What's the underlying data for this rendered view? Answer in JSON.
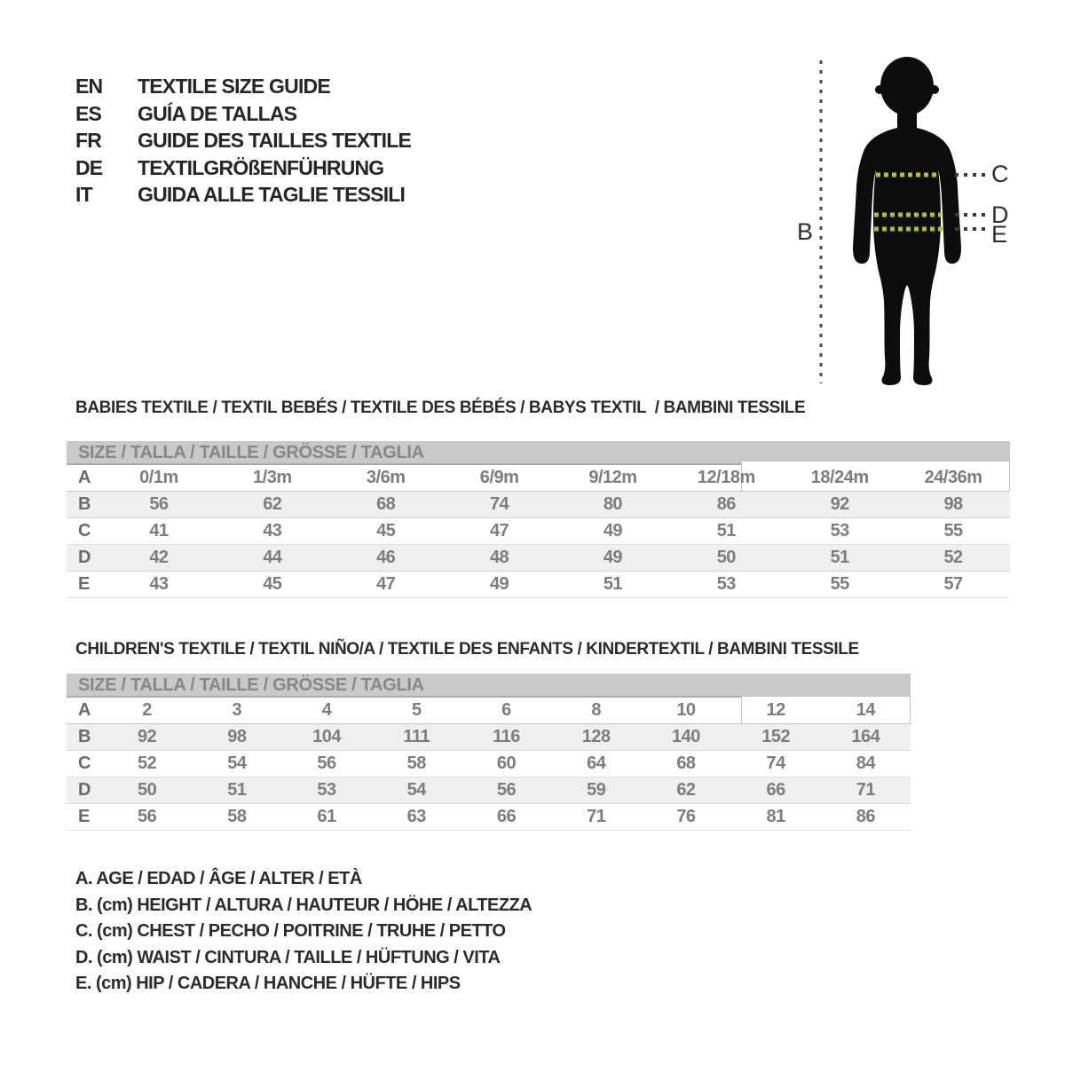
{
  "languages": [
    {
      "code": "EN",
      "label": "TEXTILE SIZE GUIDE"
    },
    {
      "code": "ES",
      "label": "GUÍA DE TALLAS"
    },
    {
      "code": "FR",
      "label": "GUIDE DES TAILLES TEXTILE"
    },
    {
      "code": "DE",
      "label": "TEXTILGRÖßENFÜHRUNG"
    },
    {
      "code": "IT",
      "label": "GUIDA ALLE TAGLIE TESSILI"
    }
  ],
  "figure": {
    "labels": {
      "height": "B",
      "chest": "C",
      "waist": "D",
      "hip": "E"
    },
    "colors": {
      "silhouette": "#0d0d0d",
      "measure_line": "#b3c124",
      "guide_dash": "#4d4d4d",
      "callout_dash": "#3a3a3a"
    }
  },
  "babies": {
    "heading": "BABIES TEXTILE / TEXTIL BEBÉS / TEXTILE DES BÉBÉS / BABYS TEXTIL  / BAMBINI TESSILE",
    "size_header": "SIZE / TALLA / TAILLE / GRÖSSE / TAGLIA",
    "rows": [
      {
        "label": "A",
        "values": [
          "0/1m",
          "1/3m",
          "3/6m",
          "6/9m",
          "9/12m",
          "12/18m",
          "18/24m",
          "24/36m"
        ]
      },
      {
        "label": "B",
        "values": [
          56,
          62,
          68,
          74,
          80,
          86,
          92,
          98
        ]
      },
      {
        "label": "C",
        "values": [
          41,
          43,
          45,
          47,
          49,
          51,
          53,
          55
        ]
      },
      {
        "label": "D",
        "values": [
          42,
          44,
          46,
          48,
          49,
          50,
          51,
          52
        ]
      },
      {
        "label": "E",
        "values": [
          43,
          45,
          47,
          49,
          51,
          53,
          55,
          57
        ]
      }
    ]
  },
  "children": {
    "heading": "CHILDREN'S TEXTILE / TEXTIL NIÑO/A / TEXTILE DES ENFANTS / KINDERTEXTIL / BAMBINI TESSILE",
    "size_header": "SIZE / TALLA / TAILLE / GRÖSSE / TAGLIA",
    "rows": [
      {
        "label": "A",
        "values": [
          2,
          3,
          4,
          5,
          6,
          8,
          10,
          12,
          14
        ]
      },
      {
        "label": "B",
        "values": [
          92,
          98,
          104,
          111,
          116,
          128,
          140,
          152,
          164
        ]
      },
      {
        "label": "C",
        "values": [
          52,
          54,
          56,
          58,
          60,
          64,
          68,
          74,
          84
        ]
      },
      {
        "label": "D",
        "values": [
          50,
          51,
          53,
          54,
          56,
          59,
          62,
          66,
          71
        ]
      },
      {
        "label": "E",
        "values": [
          56,
          58,
          61,
          63,
          66,
          71,
          76,
          81,
          86
        ]
      }
    ]
  },
  "legend": [
    "A. AGE / EDAD / ÂGE / ALTER / ETÀ",
    "B. (cm) HEIGHT / ALTURA / HAUTEUR / HÖHE / ALTEZZA",
    "C. (cm) CHEST / PECHO / POITRINE / TRUHE / PETTO",
    "D. (cm) WAIST / CINTURA / TAILLE / HÜFTUNG / VITA",
    "E. (cm) HIP / CADERA / HANCHE / HÜFTE / HIPS"
  ]
}
